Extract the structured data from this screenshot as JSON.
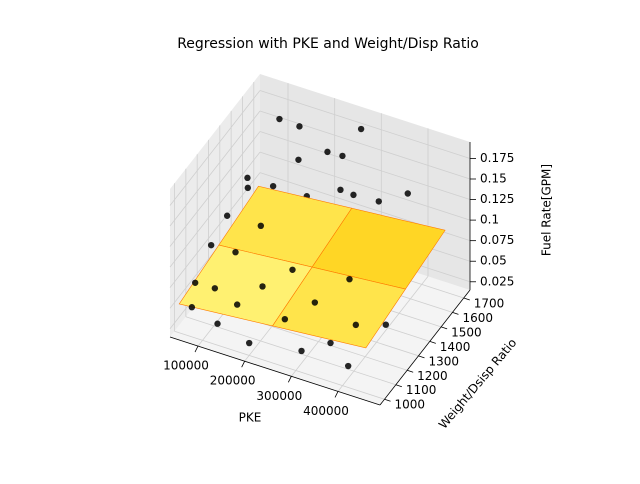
{
  "chart_data": {
    "type": "scatter3d",
    "title": "Regression with PKE and Weight/Disp Ratio",
    "x_label": "PKE",
    "y_label": "Weight/Dsisp Ratio",
    "z_label": "Fuel Rate[GPM]",
    "xlim": [
      40000,
      490000
    ],
    "ylim": [
      960,
      1755
    ],
    "zlim": [
      0.015,
      0.195
    ],
    "xticks": [
      100000,
      200000,
      300000,
      400000
    ],
    "yticks": [
      1000,
      1100,
      1200,
      1300,
      1400,
      1500,
      1600,
      1700
    ],
    "zticks": [
      0.025,
      0.05,
      0.075,
      0.1,
      0.125,
      0.15,
      0.175
    ],
    "grid": true,
    "scatter": {
      "color": "#000000",
      "x": [
        60000,
        70000,
        80000,
        65000,
        90000,
        100000,
        110000,
        120000,
        130000,
        140000,
        150000,
        160000,
        170000,
        180000,
        190000,
        200000,
        210000,
        220000,
        230000,
        240000,
        250000,
        260000,
        270000,
        280000,
        290000,
        300000,
        310000,
        320000,
        330000,
        340000,
        350000,
        360000,
        370000,
        380000,
        390000,
        400000,
        410000,
        150000,
        95000,
        75000,
        420000,
        230000
      ],
      "y": [
        1100,
        1200,
        1300,
        1050,
        1150,
        1400,
        1250,
        1050,
        1500,
        1350,
        1100,
        1600,
        1450,
        1200,
        1550,
        1000,
        1650,
        1300,
        1500,
        1150,
        1600,
        1400,
        1700,
        1250,
        1550,
        1050,
        1450,
        1650,
        1350,
        1600,
        1100,
        1500,
        1700,
        1200,
        1400,
        1050,
        1600,
        1650,
        1700,
        1500,
        1300,
        1700
      ],
      "z": [
        0.06,
        0.09,
        0.11,
        0.04,
        0.05,
        0.13,
        0.08,
        0.03,
        0.12,
        0.1,
        0.05,
        0.14,
        0.09,
        0.06,
        0.11,
        0.03,
        0.15,
        0.07,
        0.1,
        0.04,
        0.12,
        0.08,
        0.18,
        0.05,
        0.13,
        0.03,
        0.09,
        0.11,
        0.07,
        0.1,
        0.04,
        0.08,
        0.12,
        0.05,
        0.06,
        0.03,
        0.09,
        0.17,
        0.16,
        0.12,
        0.04,
        0.14
      ]
    },
    "surface": {
      "x": [
        50000,
        250000,
        450000
      ],
      "y": [
        1000,
        1350,
        1700
      ],
      "z": [
        [
          0.05,
          0.06,
          0.07
        ],
        [
          0.06,
          0.07,
          0.08
        ],
        [
          0.07,
          0.08,
          0.09
        ]
      ]
    }
  }
}
